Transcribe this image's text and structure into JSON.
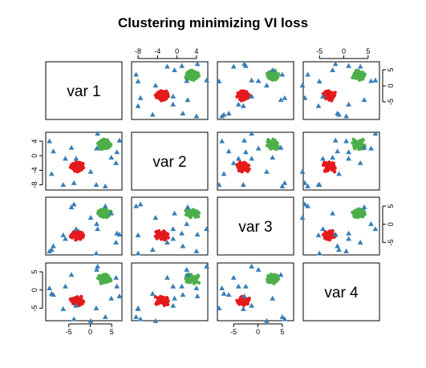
{
  "chart_data": {
    "type": "scatter",
    "title": "Clustering minimizing VI loss",
    "variables": [
      "var 1",
      "var 2",
      "var 3",
      "var 4"
    ],
    "ranges": [
      [
        -10,
        7
      ],
      [
        -9,
        6
      ],
      [
        -8,
        7
      ],
      [
        -8,
        7
      ]
    ],
    "ticks": [
      [
        -5,
        0,
        5
      ],
      [
        -8,
        -4,
        0,
        4
      ],
      [
        -5,
        0,
        5
      ],
      [
        -5,
        0,
        5
      ]
    ],
    "tick_labels": [
      [
        "-5",
        "0",
        "5"
      ],
      [
        "-8",
        "-4",
        "0",
        "4"
      ],
      [
        "-5",
        "0",
        "5"
      ],
      [
        "-5",
        "0",
        "5"
      ]
    ],
    "grid": false,
    "legend": "none",
    "series": [
      {
        "cluster": 1,
        "color": "#E41A1C",
        "marker": "circle",
        "points": [
          [
            -2.8,
            -3.1,
            -3.0,
            -2.9
          ],
          [
            -3.5,
            -2.4,
            -2.6,
            -3.6
          ],
          [
            -2.1,
            -3.6,
            -3.4,
            -2.5
          ],
          [
            -3.9,
            -2.9,
            -2.2,
            -3.1
          ],
          [
            -2.5,
            -4.1,
            -3.9,
            -3.3
          ],
          [
            -3.2,
            -2.1,
            -3.1,
            -2.1
          ],
          [
            -1.9,
            -2.7,
            -2.4,
            -3.8
          ],
          [
            -4.2,
            -3.4,
            -3.7,
            -2.7
          ],
          [
            -2.6,
            -1.9,
            -2.8,
            -4.0
          ],
          [
            -3.7,
            -3.9,
            -2.0,
            -2.4
          ],
          [
            -2.3,
            -3.2,
            -4.1,
            -3.5
          ],
          [
            -3.0,
            -4.4,
            -3.3,
            -1.9
          ],
          [
            -4.4,
            -2.6,
            -2.9,
            -3.0
          ],
          [
            -2.0,
            -3.0,
            -3.6,
            -3.2
          ],
          [
            -3.3,
            -3.5,
            -2.3,
            -2.8
          ],
          [
            -2.7,
            -2.3,
            -3.8,
            -3.9
          ],
          [
            -3.8,
            -3.1,
            -2.7,
            -2.6
          ],
          [
            -2.4,
            -4.0,
            -2.5,
            -3.4
          ],
          [
            -3.1,
            -2.8,
            -3.5,
            -2.0
          ],
          [
            -1.6,
            -3.3,
            -3.0,
            -3.1
          ],
          [
            -4.0,
            -2.2,
            -3.2,
            -3.7
          ],
          [
            -2.9,
            -3.7,
            -1.8,
            -2.3
          ],
          [
            -3.4,
            -2.5,
            -4.3,
            -2.9
          ],
          [
            -2.2,
            -2.0,
            -2.6,
            -3.6
          ],
          [
            -3.6,
            -3.8,
            -3.1,
            -2.2
          ],
          [
            -1.8,
            -2.9,
            -2.8,
            -3.3
          ],
          [
            -4.6,
            -3.2,
            -3.4,
            -2.5
          ],
          [
            -2.8,
            -4.3,
            -2.1,
            -3.8
          ],
          [
            -3.3,
            -1.8,
            -3.7,
            -3.0
          ],
          [
            -2.5,
            -2.6,
            -2.9,
            -4.2
          ],
          [
            -3.9,
            -3.6,
            -2.4,
            -2.7
          ],
          [
            -2.1,
            -3.4,
            -3.3,
            -1.8
          ],
          [
            -3.0,
            -2.4,
            -4.0,
            -3.2
          ],
          [
            -4.1,
            -3.0,
            -2.6,
            -2.4
          ],
          [
            -2.6,
            -3.9,
            -3.0,
            -3.5
          ],
          [
            -3.5,
            -2.7,
            -1.9,
            -2.9
          ],
          [
            -1.7,
            -2.2,
            -3.5,
            -3.4
          ],
          [
            -2.9,
            -3.5,
            -2.8,
            -2.1
          ],
          [
            -3.6,
            -4.2,
            -3.2,
            -3.9
          ],
          [
            -2.3,
            -2.5,
            -2.2,
            -2.6
          ],
          [
            -3.2,
            -3.3,
            -3.9,
            -3.1
          ],
          [
            -4.3,
            -2.8,
            -3.1,
            -2.8
          ],
          [
            -2.0,
            -3.8,
            -2.7,
            -3.7
          ],
          [
            -3.4,
            -2.0,
            -3.6,
            -2.3
          ],
          [
            -2.7,
            -3.0,
            -2.4,
            -3.0
          ],
          [
            -3.8,
            -3.7,
            -3.0,
            -2.5
          ]
        ]
      },
      {
        "cluster": 2,
        "color": "#4DAF4A",
        "marker": "circle",
        "points": [
          [
            3.0,
            3.1,
            3.2,
            3.0
          ],
          [
            3.6,
            2.5,
            2.6,
            3.7
          ],
          [
            2.4,
            3.7,
            3.8,
            2.4
          ],
          [
            4.1,
            2.9,
            2.2,
            3.2
          ],
          [
            2.7,
            4.2,
            3.5,
            3.4
          ],
          [
            3.3,
            2.1,
            3.0,
            2.2
          ],
          [
            2.1,
            2.8,
            2.8,
            3.9
          ],
          [
            4.4,
            3.5,
            3.6,
            2.7
          ],
          [
            2.9,
            2.0,
            3.3,
            4.1
          ],
          [
            3.8,
            4.0,
            2.4,
            2.5
          ],
          [
            2.5,
            3.3,
            4.0,
            3.6
          ],
          [
            3.1,
            4.5,
            3.1,
            2.0
          ],
          [
            4.6,
            2.6,
            2.9,
            3.1
          ],
          [
            2.2,
            3.0,
            3.7,
            3.3
          ],
          [
            3.5,
            3.6,
            2.5,
            2.9
          ],
          [
            2.8,
            2.3,
            3.9,
            4.0
          ],
          [
            4.0,
            3.2,
            2.7,
            2.6
          ],
          [
            2.6,
            4.1,
            3.4,
            3.5
          ],
          [
            3.2,
            2.7,
            2.3,
            2.1
          ],
          [
            1.8,
            3.4,
            3.0,
            3.2
          ],
          [
            4.2,
            2.2,
            3.2,
            3.8
          ],
          [
            3.0,
            3.8,
            2.0,
            2.3
          ],
          [
            3.7,
            2.4,
            4.2,
            3.0
          ],
          [
            2.3,
            1.9,
            2.6,
            3.6
          ],
          [
            3.9,
            3.9,
            3.1,
            2.2
          ],
          [
            2.0,
            2.9,
            2.9,
            3.4
          ],
          [
            4.8,
            3.1,
            3.5,
            2.6
          ],
          [
            3.4,
            4.4,
            2.1,
            3.9
          ],
          [
            2.7,
            1.8,
            3.8,
            3.1
          ],
          [
            3.6,
            2.6,
            2.7,
            4.3
          ],
          [
            4.3,
            3.7,
            2.4,
            2.8
          ],
          [
            2.5,
            3.5,
            3.3,
            1.8
          ],
          [
            3.1,
            2.3,
            4.1,
            3.3
          ],
          [
            4.5,
            3.0,
            2.8,
            2.5
          ],
          [
            2.9,
            3.9,
            3.0,
            3.5
          ],
          [
            3.8,
            2.8,
            1.9,
            2.9
          ],
          [
            1.9,
            2.1,
            3.6,
            3.4
          ],
          [
            3.3,
            3.6,
            2.6,
            2.2
          ],
          [
            4.0,
            4.3,
            3.2,
            4.0
          ],
          [
            2.4,
            2.5,
            2.3,
            2.7
          ],
          [
            3.5,
            3.3,
            3.9,
            3.1
          ],
          [
            4.7,
            2.8,
            3.3,
            2.9
          ],
          [
            2.2,
            3.8,
            2.5,
            3.7
          ],
          [
            3.7,
            2.0,
            3.7,
            2.3
          ],
          [
            2.8,
            3.1,
            2.9,
            3.0
          ],
          [
            4.1,
            3.7,
            3.1,
            2.6
          ],
          [
            3.2,
            2.9,
            3.4,
            4.2
          ],
          [
            2.6,
            4.0,
            2.2,
            3.3
          ]
        ]
      },
      {
        "cluster": 3,
        "color": "#377EB8",
        "marker": "triangle",
        "points": [
          [
            -9.0,
            -5.0,
            -7.0,
            -1.0
          ],
          [
            -8.6,
            1.2,
            -6.0,
            -1.3
          ],
          [
            -9.5,
            4.0,
            -7.4,
            0.5
          ],
          [
            -6.3,
            -8.0,
            -3.0,
            -5.2
          ],
          [
            -5.8,
            -0.8,
            -4.0,
            1.0
          ],
          [
            -4.4,
            2.2,
            4.7,
            4.2
          ],
          [
            -3.8,
            -7.5,
            5.5,
            -8.0
          ],
          [
            -3.3,
            -0.8,
            -1.3,
            -4.3
          ],
          [
            0.1,
            -4.4,
            1.8,
            -8.5
          ],
          [
            1.5,
            2.0,
            0.1,
            5.6
          ],
          [
            1.4,
            -8.0,
            -8.0,
            -5.0
          ],
          [
            1.7,
            6.1,
            -1.3,
            6.5
          ],
          [
            3.5,
            -8.4,
            5.0,
            -7.4
          ],
          [
            4.9,
            -0.5,
            3.0,
            -2.3
          ],
          [
            6.0,
            -2.0,
            -5.0,
            3.4
          ],
          [
            6.2,
            1.0,
            -2.5,
            1.0
          ],
          [
            6.8,
            4.2,
            -2.8,
            -1.7
          ]
        ]
      }
    ]
  }
}
